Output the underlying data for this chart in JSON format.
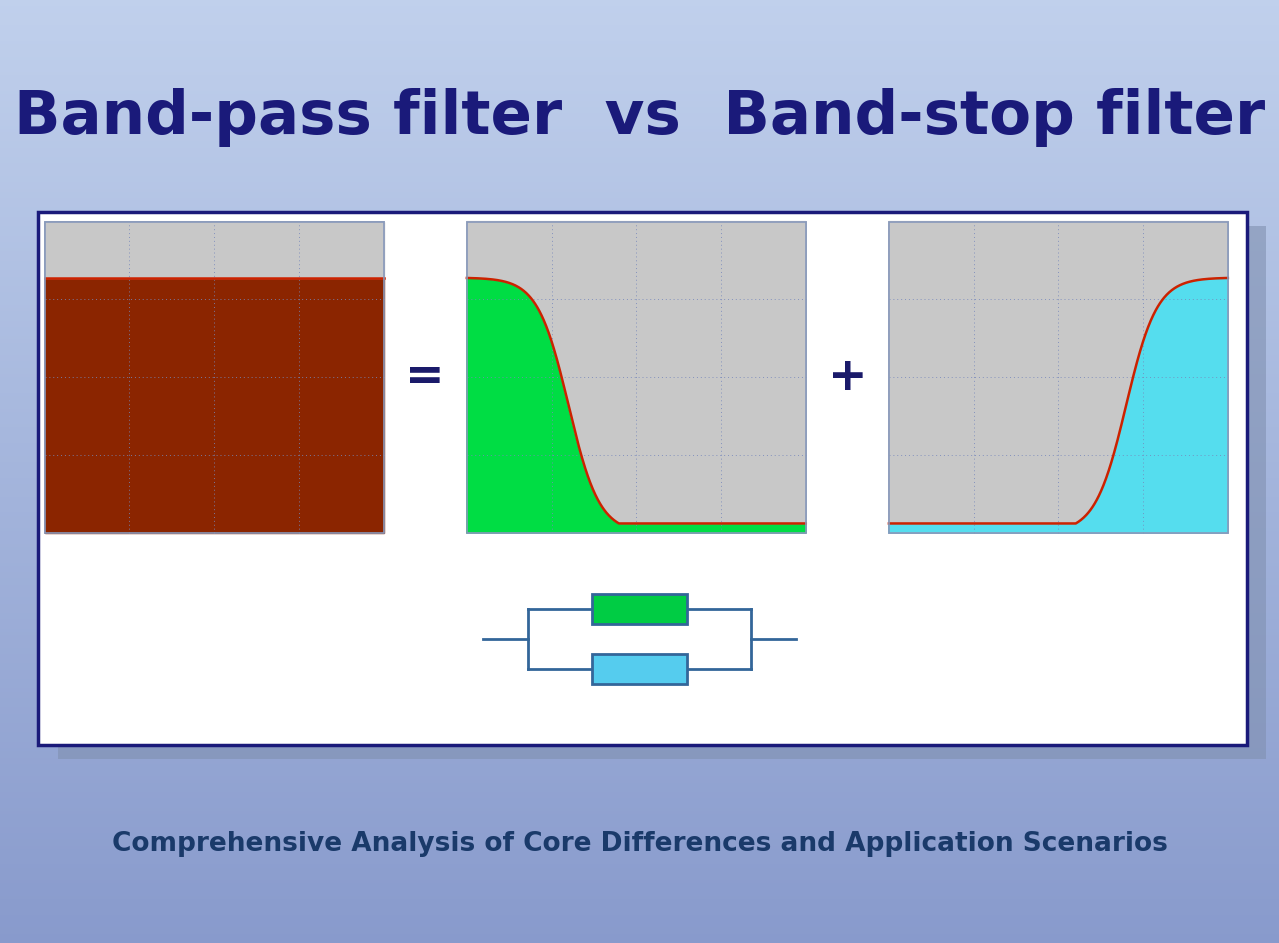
{
  "title": "Band-pass filter  vs  Band-stop filter",
  "subtitle": "Comprehensive Analysis of Core Differences and Application Scenarios",
  "title_color": "#1a1a7a",
  "subtitle_color": "#1a3a6a",
  "panel_bg": "#ffffff",
  "panel_border": "#1a1a7a",
  "plot_bg": "#c8c8c8",
  "plot_border": "#8899bb",
  "grid_color": "#7788bb",
  "curve_color": "#cc2200",
  "band_stop_fill": "#8b2500",
  "low_pass_fill": "#00dd44",
  "high_pass_fill": "#55ddee",
  "resistor_green": "#00cc44",
  "resistor_cyan": "#55ccee",
  "resistor_border": "#336699",
  "eq_color": "#1a1a6a",
  "plus_color": "#1a1a6a",
  "shadow_color": "#8090b0"
}
